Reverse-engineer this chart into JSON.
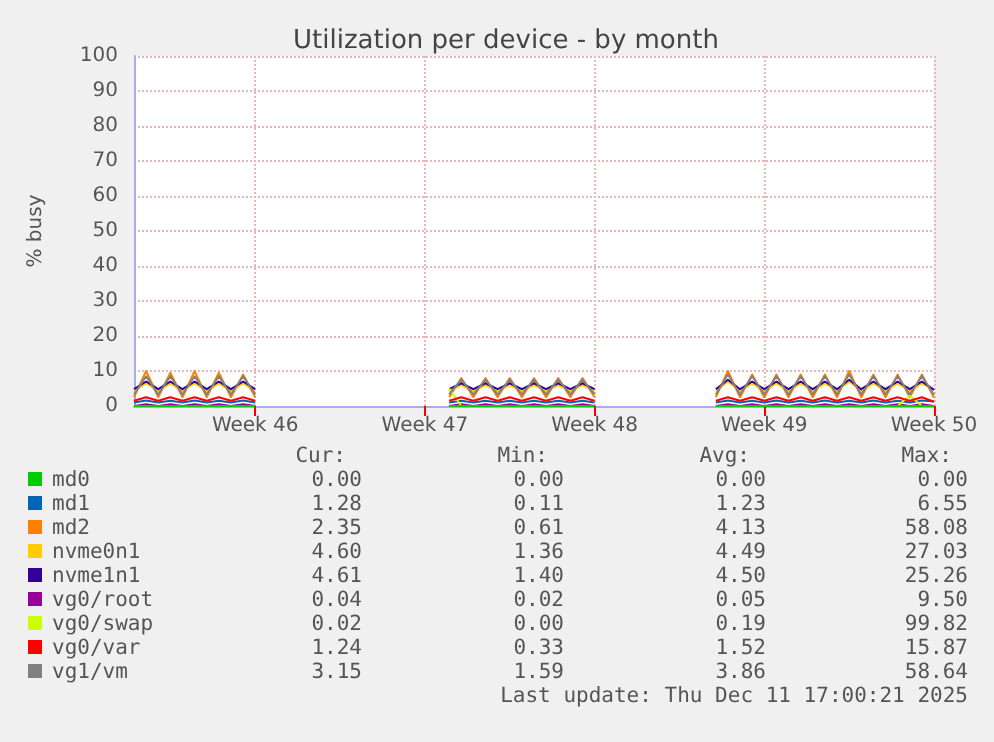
{
  "chart_data": {
    "type": "line",
    "title": "Utilization per device - by month",
    "ylabel": "% busy",
    "categories": [
      null,
      null,
      null,
      null,
      null,
      null,
      null,
      null,
      null,
      null,
      "Week 46",
      null,
      null,
      null,
      null,
      null,
      null,
      null,
      null,
      null,
      null,
      null,
      null,
      null,
      "Week 47",
      null,
      null,
      null,
      null,
      null,
      null,
      null,
      null,
      null,
      null,
      null,
      null,
      null,
      "Week 48",
      null,
      null,
      null,
      null,
      null,
      null,
      null,
      null,
      null,
      null,
      null,
      null,
      null,
      "Week 49",
      null,
      null,
      null,
      null,
      null,
      null,
      null,
      null,
      null,
      null,
      null,
      null,
      null,
      "Week 50"
    ],
    "ylim": [
      0,
      100
    ],
    "yticks": [
      0,
      10,
      20,
      30,
      40,
      50,
      60,
      70,
      80,
      90,
      100
    ],
    "grid": true,
    "legend": "bottom",
    "marker": "none",
    "line_style": "solid",
    "series": [
      {
        "name": "md0",
        "color": "#00cc00",
        "values": [
          0,
          0,
          0,
          0,
          0,
          0,
          0,
          0,
          0,
          0,
          0,
          null,
          null,
          null,
          null,
          null,
          null,
          null,
          null,
          null,
          null,
          null,
          null,
          null,
          null,
          null,
          0,
          0,
          0,
          0,
          0,
          0,
          0,
          0,
          0,
          0,
          0,
          0,
          0,
          null,
          null,
          null,
          null,
          null,
          null,
          null,
          null,
          null,
          0,
          0,
          0,
          0,
          0,
          0,
          0,
          0,
          0,
          0,
          0,
          0,
          0,
          0,
          0,
          0,
          0,
          0,
          0
        ]
      },
      {
        "name": "md1",
        "color": "#0066b3",
        "values": [
          1,
          1.6,
          1,
          1.5,
          1,
          1.6,
          1,
          1.5,
          1,
          1.6,
          1,
          null,
          null,
          null,
          null,
          null,
          null,
          null,
          null,
          null,
          null,
          null,
          null,
          null,
          null,
          null,
          1,
          1.5,
          1,
          1.5,
          1,
          1.5,
          1,
          1.5,
          1,
          1.5,
          1,
          1.5,
          1,
          null,
          null,
          null,
          null,
          null,
          null,
          null,
          null,
          null,
          1,
          1.6,
          1,
          1.5,
          1,
          1.6,
          1,
          1.5,
          1,
          1.6,
          1,
          1.5,
          1,
          1.6,
          1,
          1.5,
          1,
          1.6,
          1.3
        ]
      },
      {
        "name": "md2",
        "color": "#ff8000",
        "values": [
          2.5,
          10,
          2.5,
          9.5,
          2.5,
          10,
          2.5,
          9.5,
          2.5,
          9,
          2.5,
          null,
          null,
          null,
          null,
          null,
          null,
          null,
          null,
          null,
          null,
          null,
          null,
          null,
          null,
          null,
          2.5,
          8,
          2.5,
          8,
          2.5,
          8,
          2.5,
          8,
          2.5,
          8,
          2.5,
          8,
          2.5,
          null,
          null,
          null,
          null,
          null,
          null,
          null,
          null,
          null,
          2.5,
          10,
          2.5,
          9,
          2.5,
          9,
          2.5,
          9,
          2.5,
          9,
          2.5,
          10,
          2.5,
          9,
          2.5,
          9,
          2.5,
          9,
          2.4
        ]
      },
      {
        "name": "nvme0n1",
        "color": "#ffcc00",
        "values": [
          4.2,
          6.5,
          4.2,
          6.5,
          4.2,
          6.5,
          4.2,
          6.5,
          4.2,
          6.5,
          4.2,
          null,
          null,
          null,
          null,
          null,
          null,
          null,
          null,
          null,
          null,
          null,
          null,
          null,
          null,
          null,
          4.2,
          6,
          4.2,
          6,
          4.2,
          6,
          4.2,
          6,
          4.2,
          6,
          4.2,
          6,
          4.2,
          null,
          null,
          null,
          null,
          null,
          null,
          null,
          null,
          null,
          4.2,
          7,
          4.2,
          6.5,
          4.2,
          6.5,
          4.2,
          6.5,
          4.2,
          6.5,
          4.2,
          7,
          4.2,
          6.5,
          4.2,
          6.5,
          4.2,
          6.5,
          4.6
        ]
      },
      {
        "name": "nvme1n1",
        "color": "#330099",
        "values": [
          4.8,
          7,
          4.8,
          7,
          4.8,
          7,
          4.8,
          7,
          4.8,
          7,
          4.8,
          null,
          null,
          null,
          null,
          null,
          null,
          null,
          null,
          null,
          null,
          null,
          null,
          null,
          null,
          null,
          4.8,
          6.5,
          4.8,
          6.5,
          4.8,
          6.5,
          4.8,
          6.5,
          4.8,
          6.5,
          4.8,
          6.5,
          4.8,
          null,
          null,
          null,
          null,
          null,
          null,
          null,
          null,
          null,
          4.8,
          7.5,
          4.8,
          7,
          4.8,
          7,
          4.8,
          7,
          4.8,
          7,
          4.8,
          7.5,
          4.8,
          7,
          4.8,
          7,
          4.8,
          7,
          4.6
        ]
      },
      {
        "name": "vg0/root",
        "color": "#990099",
        "values": [
          0,
          0.5,
          0,
          0.5,
          0,
          0.5,
          0,
          0.5,
          0,
          0.5,
          0,
          null,
          null,
          null,
          null,
          null,
          null,
          null,
          null,
          null,
          null,
          null,
          null,
          null,
          null,
          null,
          0,
          0.5,
          0,
          0.5,
          0,
          0.5,
          0,
          0.5,
          0,
          0.5,
          0,
          0.5,
          0,
          null,
          null,
          null,
          null,
          null,
          null,
          null,
          null,
          null,
          0,
          0.5,
          0,
          0.5,
          0,
          0.5,
          0,
          0.5,
          0,
          0.5,
          0,
          0.5,
          0,
          0.5,
          0,
          0.5,
          0,
          0.5,
          0
        ]
      },
      {
        "name": "vg0/swap",
        "color": "#ccff00",
        "values": [
          null,
          null,
          null,
          null,
          null,
          null,
          null,
          null,
          null,
          null,
          null,
          null,
          null,
          null,
          null,
          null,
          null,
          null,
          null,
          null,
          null,
          null,
          null,
          null,
          null,
          null,
          5,
          0,
          null,
          null,
          null,
          null,
          null,
          null,
          null,
          null,
          null,
          null,
          null,
          null,
          null,
          null,
          null,
          null,
          null,
          null,
          null,
          null,
          null,
          null,
          null,
          null,
          null,
          null,
          null,
          null,
          null,
          null,
          null,
          null,
          null,
          null,
          null,
          0,
          3,
          0,
          null
        ]
      },
      {
        "name": "vg0/var",
        "color": "#ff0000",
        "values": [
          1.5,
          2.5,
          1.5,
          2.5,
          1.5,
          2.5,
          1.5,
          2.5,
          1.5,
          2.5,
          1.5,
          null,
          null,
          null,
          null,
          null,
          null,
          null,
          null,
          null,
          null,
          null,
          null,
          null,
          null,
          null,
          1.5,
          2.5,
          1.5,
          2.5,
          1.5,
          2.5,
          1.5,
          2.5,
          1.5,
          2.5,
          1.5,
          2.5,
          1.5,
          null,
          null,
          null,
          null,
          null,
          null,
          null,
          null,
          null,
          1.5,
          2.5,
          1.5,
          2.5,
          1.5,
          2.5,
          1.5,
          2.5,
          1.5,
          2.5,
          1.5,
          2.5,
          1.5,
          2.5,
          1.5,
          2.5,
          1.5,
          2.5,
          1.2
        ]
      },
      {
        "name": "vg1/vm",
        "color": "#808080",
        "values": [
          3.3,
          8.5,
          3.3,
          8.5,
          3.3,
          8.5,
          3.3,
          8.5,
          3.3,
          8.5,
          3.3,
          null,
          null,
          null,
          null,
          null,
          null,
          null,
          null,
          null,
          null,
          null,
          null,
          null,
          null,
          null,
          3.3,
          7.5,
          3.3,
          7.5,
          3.3,
          7.5,
          3.3,
          7.5,
          3.3,
          7.5,
          3.3,
          7.5,
          3.3,
          null,
          null,
          null,
          null,
          null,
          null,
          null,
          null,
          null,
          3.3,
          9,
          3.3,
          8.5,
          3.3,
          8.5,
          3.3,
          8.5,
          3.3,
          8.5,
          3.3,
          9,
          3.3,
          8.5,
          3.3,
          8.5,
          3.3,
          8.5,
          3.2
        ]
      }
    ],
    "annotations": [
      "Cur:",
      "Min:",
      "Avg:",
      "Max:",
      "0.00",
      "0.00",
      "0.00",
      "0.00",
      "1.28",
      "0.11",
      "1.23",
      "6.55",
      "2.35",
      "0.61",
      "4.13",
      "58.08",
      "4.60",
      "1.36",
      "4.49",
      "27.03",
      "4.61",
      "1.40",
      "4.50",
      "25.26",
      "0.04",
      "0.02",
      "0.05",
      "9.50",
      "0.02",
      "0.00",
      "0.19",
      "99.82",
      "1.24",
      "0.33",
      "1.52",
      "15.87",
      "3.15",
      "1.59",
      "3.86",
      "58.64",
      "Last update: Thu Dec 11 17:00:21 2025"
    ]
  }
}
